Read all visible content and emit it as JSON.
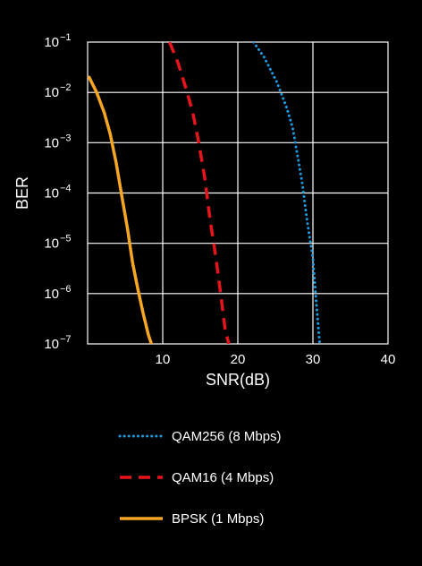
{
  "chart_data": {
    "type": "line",
    "xlabel": "SNR(dB)",
    "ylabel": "BER",
    "xlim": [
      0,
      40
    ],
    "ylim": [
      1e-07,
      0.1
    ],
    "y_scale": "log",
    "grid": true,
    "legend_position": "below",
    "x_ticks": [
      {
        "value": 10,
        "label": "10"
      },
      {
        "value": 20,
        "label": "20"
      },
      {
        "value": 30,
        "label": "30"
      },
      {
        "value": 40,
        "label": "40"
      }
    ],
    "y_ticks": [
      {
        "value": 0.1,
        "base": "10",
        "exp": "−1"
      },
      {
        "value": 0.01,
        "base": "10",
        "exp": "−2"
      },
      {
        "value": 0.001,
        "base": "10",
        "exp": "−3"
      },
      {
        "value": 0.0001,
        "base": "10",
        "exp": "−4"
      },
      {
        "value": 1e-05,
        "base": "10",
        "exp": "−5"
      },
      {
        "value": 1e-06,
        "base": "10",
        "exp": "−6"
      },
      {
        "value": 1e-07,
        "base": "10",
        "exp": "−7"
      }
    ],
    "series": [
      {
        "name": "QAM256 (8 Mbps)",
        "color": "#1e9be0",
        "style": "dotted",
        "x": [
          22.1,
          23.5,
          25.2,
          26.5,
          27.3,
          28.0,
          28.6,
          29.2,
          30.0,
          30.4,
          30.9
        ],
        "y": [
          0.1,
          0.05,
          0.016,
          0.005,
          0.002,
          0.0005,
          0.00015,
          3e-05,
          5e-06,
          8e-07,
          1e-07
        ]
      },
      {
        "name": "QAM16 (4 Mbps)",
        "color": "#e8141c",
        "style": "dashed",
        "x": [
          10.9,
          12.0,
          13.1,
          14.0,
          14.8,
          15.6,
          16.3,
          17.1,
          17.9,
          18.3,
          18.8
        ],
        "y": [
          0.1,
          0.04,
          0.012,
          0.004,
          0.001,
          0.0002,
          3e-05,
          5e-06,
          6e-07,
          2e-07,
          1e-07
        ]
      },
      {
        "name": "BPSK (1 Mbps)",
        "color": "#f5a623",
        "style": "solid",
        "x": [
          0.2,
          1.2,
          2.2,
          3.0,
          3.8,
          4.6,
          5.3,
          6.0,
          6.7,
          7.4,
          8.1,
          8.5
        ],
        "y": [
          0.02,
          0.01,
          0.004,
          0.0015,
          0.0004,
          8e-05,
          2e-05,
          4e-06,
          1.2e-06,
          4e-07,
          1.5e-07,
          1e-07
        ]
      }
    ]
  }
}
